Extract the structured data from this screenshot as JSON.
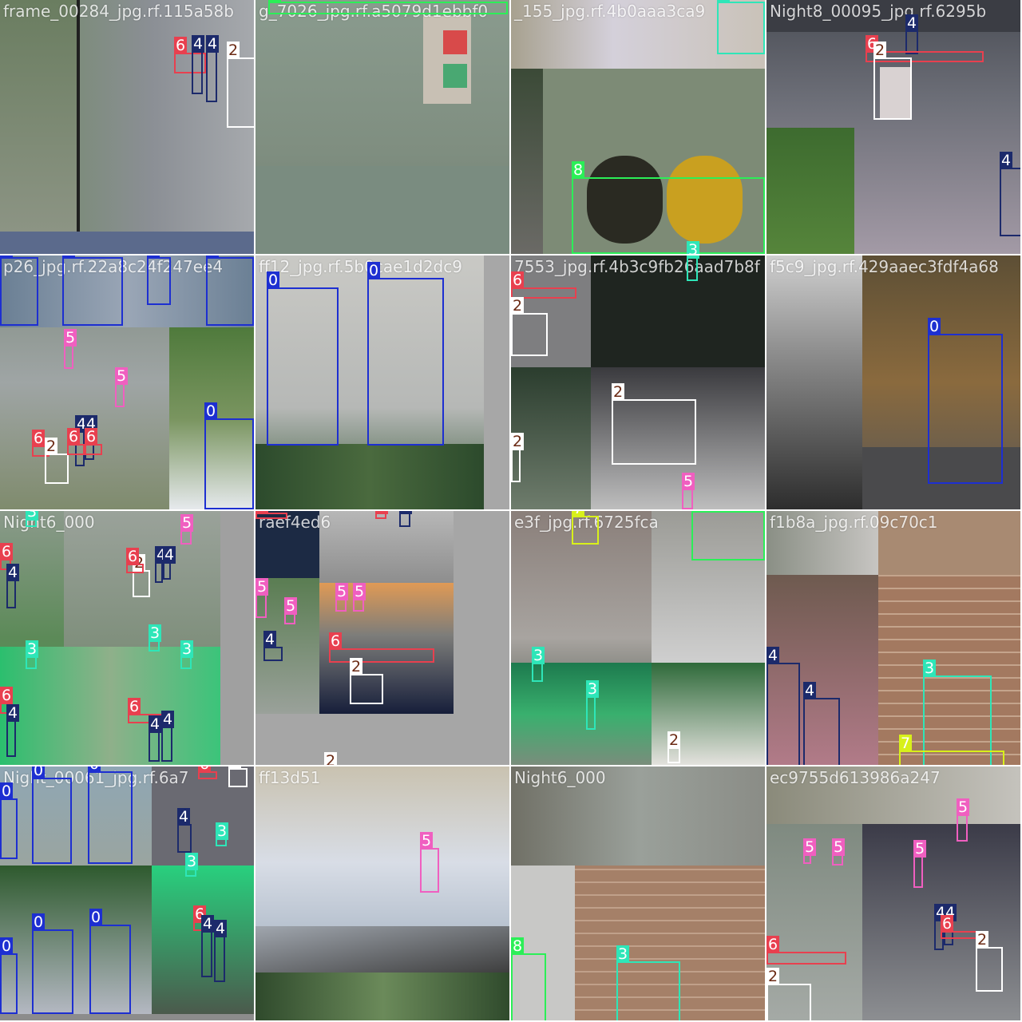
{
  "class_colors": {
    "0": "#1d2fd1",
    "2": "#ffffff",
    "3": "#2ee6b8",
    "4": "#1c2a6b",
    "5": "#f05fc0",
    "6": "#e8404f",
    "7": "#d8f01a",
    "8": "#2bef57"
  },
  "label_text_colors": {
    "0": "#ffffff",
    "2": "#6b2a14",
    "3": "#ffffff",
    "4": "#ffffff",
    "5": "#ffffff",
    "6": "#ffffff",
    "7": "#ffffff",
    "8": "#ffffff"
  },
  "tiles": [
    {
      "title": "frame_00284_jpg.rf.115a58b",
      "scene": "street-day",
      "boxes": [
        {
          "cls": "6"
        },
        {
          "cls": "4"
        },
        {
          "cls": "4"
        },
        {
          "cls": "2"
        }
      ]
    },
    {
      "title": "g_7026_jpg.rf.a5079d1ebbf0",
      "scene": "wall-close",
      "boxes": [
        {
          "cls": "8"
        }
      ]
    },
    {
      "title": "_155_jpg.rf.4b0aaa3ca9",
      "scene": "traffic-light-close",
      "boxes": [
        {
          "cls": "3"
        },
        {
          "cls": "8"
        },
        {
          "cls": "3"
        }
      ]
    },
    {
      "title": "Night8_00095_jpg.rf.6295b",
      "scene": "street-night",
      "boxes": [
        {
          "cls": "4"
        },
        {
          "cls": "6"
        },
        {
          "cls": "2"
        },
        {
          "cls": "4"
        }
      ]
    },
    {
      "title": "p26_jpg.rf.22a8c24f247ee4",
      "scene": "bikes-street",
      "boxes": [
        {
          "cls": "0"
        },
        {
          "cls": "0"
        },
        {
          "cls": "0"
        },
        {
          "cls": "0"
        },
        {
          "cls": "5"
        },
        {
          "cls": "5"
        },
        {
          "cls": "6"
        },
        {
          "cls": "2"
        },
        {
          "cls": "4"
        },
        {
          "cls": "4"
        },
        {
          "cls": "6"
        },
        {
          "cls": "6"
        },
        {
          "cls": "0"
        }
      ]
    },
    {
      "title": "ff12_jpg.rf.5b0cae1d2dc9",
      "scene": "bikes-close",
      "boxes": [
        {
          "cls": "0"
        },
        {
          "cls": "0"
        }
      ]
    },
    {
      "title": "7553_jpg.rf.4b3c9fb26aad7b8f",
      "scene": "dark-street",
      "boxes": [
        {
          "cls": "3"
        },
        {
          "cls": "6"
        },
        {
          "cls": "2"
        },
        {
          "cls": "2"
        },
        {
          "cls": "2"
        },
        {
          "cls": "5"
        }
      ]
    },
    {
      "title": "f5c9_jpg.rf.429aaec3fdf4a68",
      "scene": "cyclist",
      "boxes": [
        {
          "cls": "0"
        }
      ]
    },
    {
      "title": "Night6_000",
      "scene": "street-green",
      "boxes": [
        {
          "cls": "3"
        },
        {
          "cls": "5"
        },
        {
          "cls": "6"
        },
        {
          "cls": "4"
        },
        {
          "cls": "2"
        },
        {
          "cls": "6"
        },
        {
          "cls": "4"
        },
        {
          "cls": "4"
        },
        {
          "cls": "3"
        },
        {
          "cls": "3"
        },
        {
          "cls": "6"
        },
        {
          "cls": "4"
        },
        {
          "cls": "6"
        },
        {
          "cls": "4"
        },
        {
          "cls": "4"
        },
        {
          "cls": "3"
        }
      ]
    },
    {
      "title": "raef4ed6",
      "scene": "intersection",
      "boxes": [
        {
          "cls": "6"
        },
        {
          "cls": "6"
        },
        {
          "cls": "4"
        },
        {
          "cls": "5"
        },
        {
          "cls": "5"
        },
        {
          "cls": "5"
        },
        {
          "cls": "5"
        },
        {
          "cls": "4"
        },
        {
          "cls": "6"
        },
        {
          "cls": "2"
        },
        {
          "cls": "2"
        }
      ]
    },
    {
      "title": "e3f_jpg.rf.6725fca",
      "scene": "road-green-light",
      "boxes": [
        {
          "cls": "7"
        },
        {
          "cls": "8"
        },
        {
          "cls": "3"
        },
        {
          "cls": "3"
        },
        {
          "cls": "2"
        }
      ]
    },
    {
      "title": "f1b8a_jpg.rf.09c70c1",
      "scene": "motorbikes-brick",
      "boxes": [
        {
          "cls": "4"
        },
        {
          "cls": "4"
        },
        {
          "cls": "3"
        },
        {
          "cls": "7"
        }
      ]
    },
    {
      "title": "Night_00061_jpg.rf.6a7",
      "scene": "bikes-park",
      "boxes": [
        {
          "cls": "0"
        },
        {
          "cls": "0"
        },
        {
          "cls": "0"
        },
        {
          "cls": "4"
        },
        {
          "cls": "3"
        },
        {
          "cls": "3"
        },
        {
          "cls": "0"
        },
        {
          "cls": "0"
        },
        {
          "cls": "6"
        },
        {
          "cls": "4"
        },
        {
          "cls": "4"
        },
        {
          "cls": "0"
        },
        {
          "cls": "6"
        },
        {
          "cls": "2"
        }
      ]
    },
    {
      "title": "ff13d51",
      "scene": "blurred-light",
      "boxes": [
        {
          "cls": "5"
        }
      ]
    },
    {
      "title": "Night6_000",
      "scene": "street-brick",
      "boxes": [
        {
          "cls": "8"
        },
        {
          "cls": "3"
        }
      ]
    },
    {
      "title": "ec9755d613986a247",
      "scene": "street-aerial",
      "boxes": [
        {
          "cls": "5"
        },
        {
          "cls": "5"
        },
        {
          "cls": "5"
        },
        {
          "cls": "5"
        },
        {
          "cls": "4"
        },
        {
          "cls": "4"
        },
        {
          "cls": "6"
        },
        {
          "cls": "2"
        },
        {
          "cls": "6"
        },
        {
          "cls": "2"
        }
      ]
    }
  ]
}
